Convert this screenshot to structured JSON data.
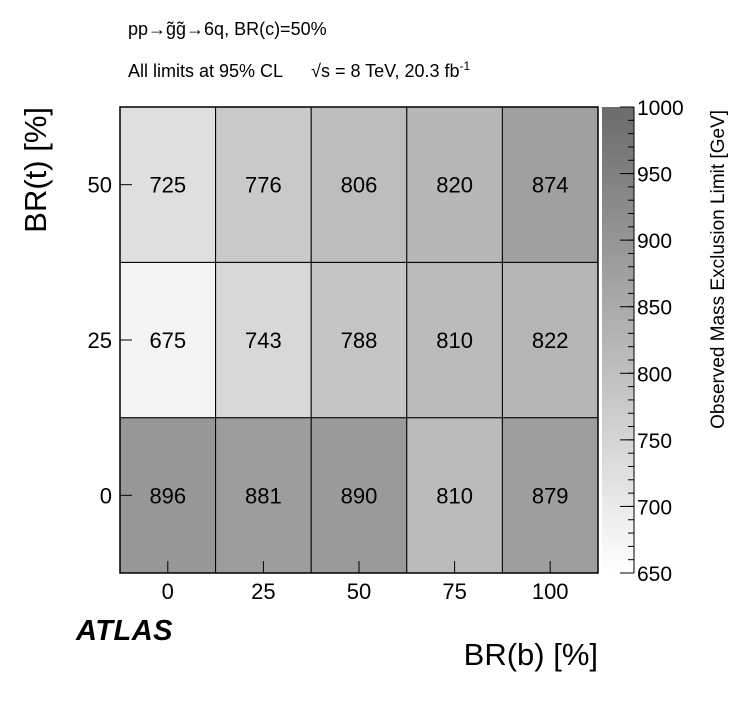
{
  "chart_data": {
    "type": "heatmap",
    "header_line1": "pp→g̃g̃→6q, BR(c)=50%",
    "header_line2_prefix": "All limits at 95% CL",
    "header_line2_energy": "√s = 8 TeV, 20.3 fb",
    "header_line2_sup": "-1",
    "experiment": "ATLAS",
    "xlabel": "BR(b) [%]",
    "ylabel": "BR(t) [%]",
    "zlabel": "Observed Mass Exclusion Limit [GeV]",
    "x_categories": [
      "0",
      "25",
      "50",
      "75",
      "100"
    ],
    "y_categories": [
      "0",
      "25",
      "50"
    ],
    "values": [
      [
        896,
        881,
        890,
        810,
        879
      ],
      [
        675,
        743,
        788,
        810,
        822
      ],
      [
        725,
        776,
        806,
        820,
        874
      ]
    ],
    "zlim": [
      650,
      1000
    ],
    "z_ticks": [
      "650",
      "700",
      "750",
      "800",
      "850",
      "900",
      "950",
      "1000"
    ],
    "colormap": {
      "low": "#ffffff",
      "high": "#6b6b6b"
    }
  }
}
